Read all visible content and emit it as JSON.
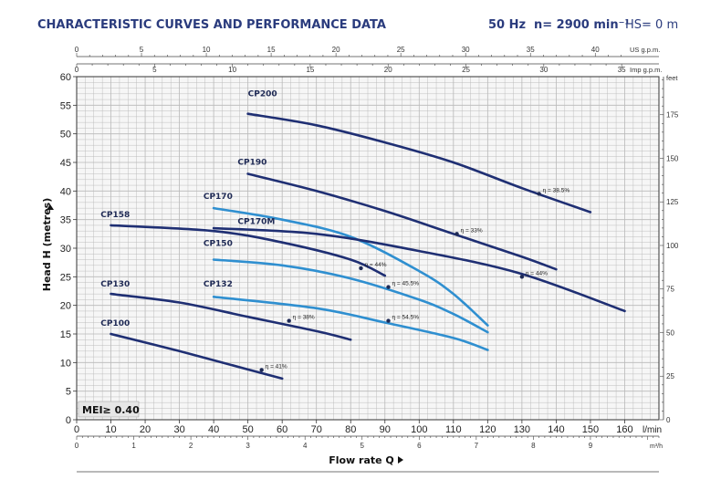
{
  "header": {
    "title": "CHARACTERISTIC CURVES AND PERFORMANCE DATA",
    "freq": "50 Hz",
    "speed": "n= 2900 min⁻¹",
    "hs": "HS= 0 m"
  },
  "colors": {
    "dark": "#1f2f73",
    "light": "#2f8fd0",
    "grid": "#b9b9b9",
    "title": "#2a3b7d",
    "mei_bg": "#e6e6e6"
  },
  "chart_data": {
    "type": "line",
    "ylabel": "Head H  (metres)",
    "xlabel": "Flow rate Q",
    "x_unit": "l/min",
    "x_unit2": "m³/h",
    "xlim": [
      0,
      170
    ],
    "ylim": [
      0,
      60
    ],
    "x_ticks": [
      0,
      10,
      20,
      30,
      40,
      50,
      60,
      70,
      80,
      90,
      100,
      110,
      120,
      130,
      140,
      150,
      160
    ],
    "y_ticks": [
      0,
      5,
      10,
      15,
      20,
      25,
      30,
      35,
      40,
      45,
      50,
      55,
      60
    ],
    "top_axis_us": {
      "unit": "US g.p.m.",
      "ticks": [
        0,
        5,
        10,
        15,
        20,
        25,
        30,
        35,
        40
      ]
    },
    "top_axis_imp": {
      "unit": "Imp g.p.m.",
      "ticks": [
        0,
        5,
        10,
        15,
        20,
        25,
        30,
        35
      ]
    },
    "bottom_axis_m3h": {
      "ticks": [
        0,
        1,
        2,
        3,
        4,
        5,
        6,
        7,
        8,
        9
      ]
    },
    "right_axis_feet": {
      "unit": "feet",
      "ticks": [
        0,
        25,
        50,
        75,
        100,
        125,
        150,
        175
      ]
    },
    "mei": "MEI≥ 0.40",
    "series": [
      {
        "name": "CP200",
        "color": "dark",
        "x": [
          50,
          70,
          90,
          110,
          130,
          150
        ],
        "y": [
          53.5,
          51.5,
          48.5,
          45,
          40.5,
          36.3
        ],
        "eff_label": "η = 38.5%",
        "eff_x": 135,
        "eff_y": 39.5
      },
      {
        "name": "CP190",
        "color": "dark",
        "x": [
          50,
          70,
          90,
          110,
          130,
          140
        ],
        "y": [
          43,
          40,
          36.5,
          32.5,
          28.5,
          26.3
        ],
        "eff_label": "η = 33%",
        "eff_x": 111,
        "eff_y": 32.5
      },
      {
        "name": "CP170",
        "color": "light",
        "x": [
          40,
          60,
          80,
          100,
          110,
          120
        ],
        "y": [
          37,
          35,
          32,
          26,
          22,
          16.5
        ],
        "eff_label": "",
        "eff_x": null,
        "eff_y": null
      },
      {
        "name": "CP170M",
        "color": "dark",
        "x": [
          40,
          70,
          100,
          130,
          160
        ],
        "y": [
          33.5,
          32.5,
          29.5,
          25.5,
          19
        ],
        "eff_label": "η = 44%",
        "eff_x": 130,
        "eff_y": 25
      },
      {
        "name": "CP158",
        "color": "dark",
        "x": [
          10,
          40,
          60,
          80,
          90
        ],
        "y": [
          34,
          33,
          31,
          28,
          25.2
        ],
        "eff_label": "η = 44%",
        "eff_x": 83,
        "eff_y": 26.5
      },
      {
        "name": "CP150",
        "color": "light",
        "x": [
          40,
          60,
          80,
          100,
          110,
          120
        ],
        "y": [
          28,
          27,
          24.7,
          21,
          18.5,
          15.3
        ],
        "eff_label": "η = 45.5%",
        "eff_x": 91,
        "eff_y": 23.2
      },
      {
        "name": "CP130",
        "color": "dark",
        "x": [
          10,
          30,
          50,
          70,
          80
        ],
        "y": [
          22,
          20.5,
          18,
          15.5,
          14
        ],
        "eff_label": "η = 38%",
        "eff_x": 62,
        "eff_y": 17.3
      },
      {
        "name": "CP132",
        "color": "light",
        "x": [
          40,
          70,
          90,
          110,
          120
        ],
        "y": [
          21.5,
          19.5,
          17,
          14.3,
          12.2
        ],
        "eff_label": "η = 54.5%",
        "eff_x": 91,
        "eff_y": 17.3
      },
      {
        "name": "CP100",
        "color": "dark",
        "x": [
          10,
          30,
          50,
          60
        ],
        "y": [
          15,
          12,
          8.8,
          7.2
        ],
        "eff_label": "η = 41%",
        "eff_x": 54,
        "eff_y": 8.7
      }
    ],
    "curve_label_pos": {
      "CP200": [
        50,
        56.6
      ],
      "CP190": [
        47,
        44.6
      ],
      "CP170": [
        37,
        38.6
      ],
      "CP170M": [
        47,
        34.2
      ],
      "CP158": [
        7,
        35.4
      ],
      "CP150": [
        37,
        30.4
      ],
      "CP130": [
        7,
        23.3
      ],
      "CP132": [
        37,
        23.3
      ],
      "CP100": [
        7,
        16.4
      ]
    }
  }
}
